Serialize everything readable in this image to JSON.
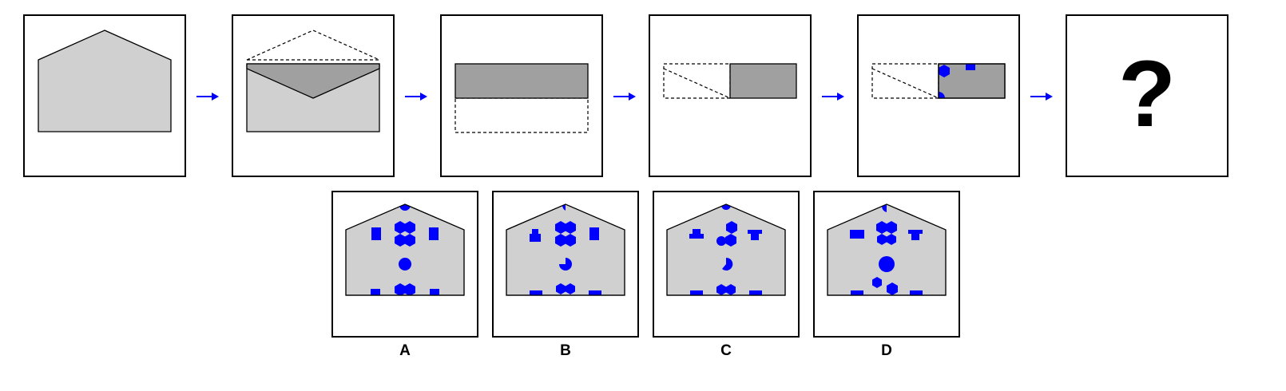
{
  "sequence": {
    "question_mark": "?"
  },
  "options": [
    {
      "label": "A"
    },
    {
      "label": "B"
    },
    {
      "label": "C"
    },
    {
      "label": "D"
    }
  ],
  "colors": {
    "envelope_fill": "#d0d0d0",
    "flap_fill": "#a0a0a0",
    "shape_fill": "#0000ff",
    "arrow": "#0000ff",
    "outline": "#000000"
  }
}
